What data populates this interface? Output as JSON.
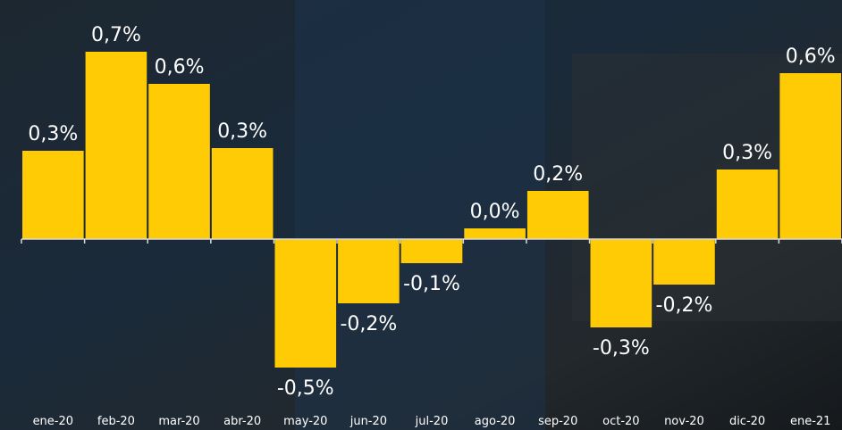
{
  "chart_data": {
    "type": "bar",
    "categories": [
      "ene-20",
      "feb-20",
      "mar-20",
      "abr-20",
      "may-20",
      "jun-20",
      "jul-20",
      "ago-20",
      "sep-20",
      "oct-20",
      "nov-20",
      "dic-20",
      "ene-21"
    ],
    "values": [
      0.33,
      0.7,
      0.58,
      0.34,
      -0.48,
      -0.24,
      -0.09,
      0.04,
      0.18,
      -0.33,
      -0.17,
      0.26,
      0.62
    ],
    "value_labels": [
      "0,3%",
      "0,7%",
      "0,6%",
      "0,3%",
      "-0,5%",
      "-0,2%",
      "-0,1%",
      "0,0%",
      "0,2%",
      "-0,3%",
      "-0,2%",
      "0,3%",
      "0,6%"
    ],
    "color": "#ffcb05"
  }
}
